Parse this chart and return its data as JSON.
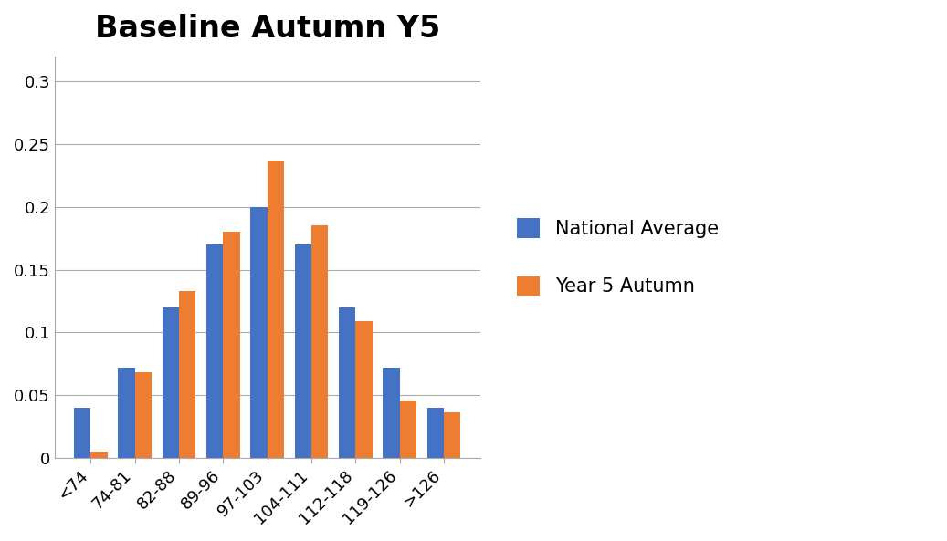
{
  "title": "Baseline Autumn Y5",
  "categories": [
    "<74",
    "74-81",
    "82-88",
    "89-96",
    "97-103",
    "104-111",
    "112-118",
    "119-126",
    ">126"
  ],
  "national_average": [
    0.04,
    0.072,
    0.12,
    0.17,
    0.2,
    0.17,
    0.12,
    0.072,
    0.04
  ],
  "year5_autumn": [
    0.005,
    0.068,
    0.133,
    0.18,
    0.237,
    0.185,
    0.109,
    0.046,
    0.036
  ],
  "bar_color_national": "#4472C4",
  "bar_color_year5": "#ED7D31",
  "legend_labels": [
    "National Average",
    "Year 5 Autumn"
  ],
  "ylim": [
    0,
    0.32
  ],
  "ytick_values": [
    0,
    0.05,
    0.1,
    0.15,
    0.2,
    0.25,
    0.3
  ],
  "ytick_labels": [
    "0",
    "0.05",
    "0.1",
    "0.15",
    "0.2",
    "0.25",
    "0.3"
  ],
  "title_fontsize": 24,
  "title_fontweight": "bold",
  "background_color": "#ffffff",
  "grid_color": "#aaaaaa",
  "tick_fontsize": 13,
  "legend_fontsize": 15
}
